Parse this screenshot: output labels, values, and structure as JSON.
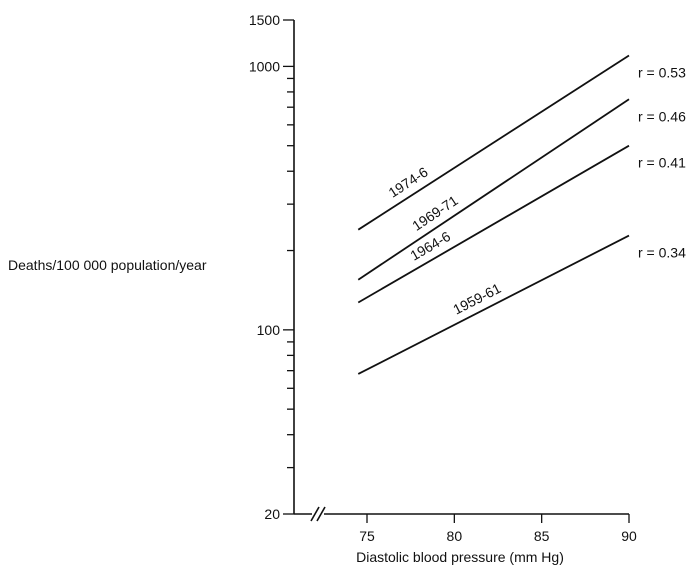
{
  "chart_data": {
    "type": "line",
    "ylabel": "Deaths/100 000 population/year",
    "xlabel": "Diastolic blood pressure (mm Hg)",
    "yscale": "log",
    "ylim": [
      20,
      1500
    ],
    "xlim": [
      75,
      90
    ],
    "axis_break": "x",
    "grid": false,
    "yticks": [
      20,
      100,
      1000,
      1500
    ],
    "yticks_minor": [
      30,
      40,
      50,
      60,
      70,
      80,
      90,
      200,
      300,
      400,
      500,
      600,
      700,
      800,
      900
    ],
    "xticks": [
      75,
      80,
      85,
      90
    ],
    "series": [
      {
        "name": "1974-6",
        "x": [
          74.5,
          90
        ],
        "y": [
          240,
          1100
        ],
        "annotation": "r = 0.53"
      },
      {
        "name": "1969-71",
        "x": [
          74.5,
          90
        ],
        "y": [
          155,
          750
        ],
        "annotation": "r = 0.46"
      },
      {
        "name": "1964-6",
        "x": [
          74.5,
          90
        ],
        "y": [
          127,
          500
        ],
        "annotation": "r = 0.41"
      },
      {
        "name": "1959-61",
        "x": [
          74.5,
          90
        ],
        "y": [
          68,
          228
        ],
        "annotation": "r = 0.34"
      }
    ]
  }
}
